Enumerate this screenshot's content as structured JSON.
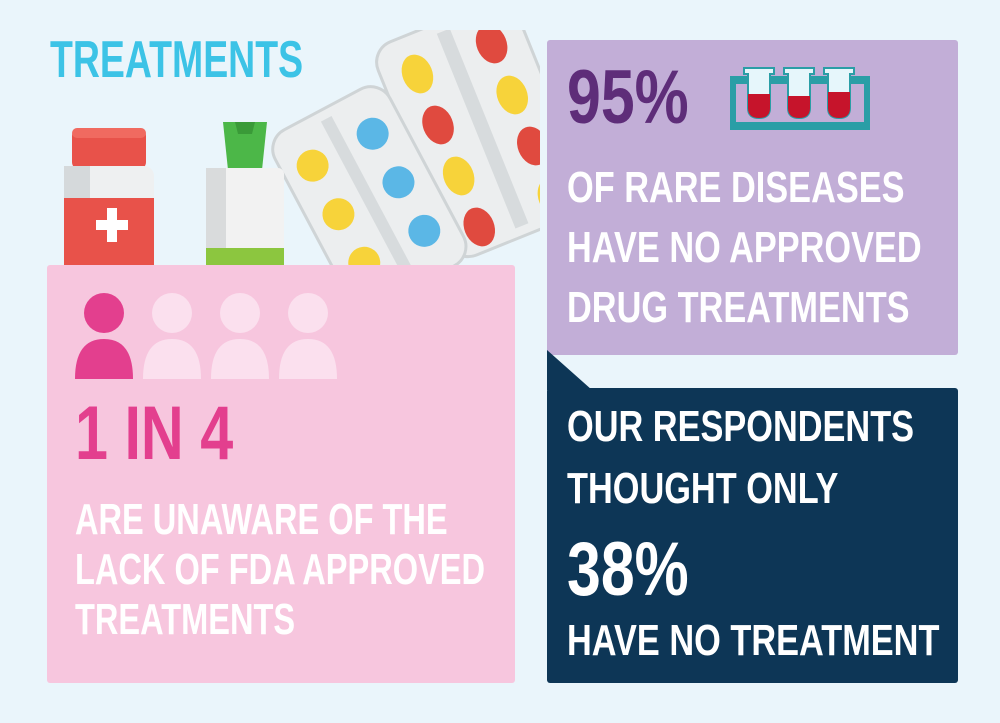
{
  "title": "TREATMENTS",
  "pink_card": {
    "stat": "1 IN 4",
    "lines": [
      "ARE UNAWARE OF THE",
      "LACK OF FDA APPROVED",
      "TREATMENTS"
    ],
    "people_total": 4,
    "people_highlighted": 1
  },
  "purple_card": {
    "stat": "95%",
    "lines": [
      "OF RARE DISEASES",
      "HAVE NO APPROVED",
      "DRUG TREATMENTS"
    ]
  },
  "navy_card": {
    "line1": "OUR RESPONDENTS",
    "line2": "THOUGHT ONLY",
    "stat": "38%",
    "bottom": "HAVE NO TREATMENT"
  },
  "colors": {
    "title": "#3cc3e6",
    "pink_panel": "#f7c6de",
    "pink_accent": "#e33f8e",
    "purple_panel": "#c2aed7",
    "purple_accent": "#5e2d79",
    "navy_panel": "#0d3656",
    "teal_icon": "#2a9ea6"
  }
}
